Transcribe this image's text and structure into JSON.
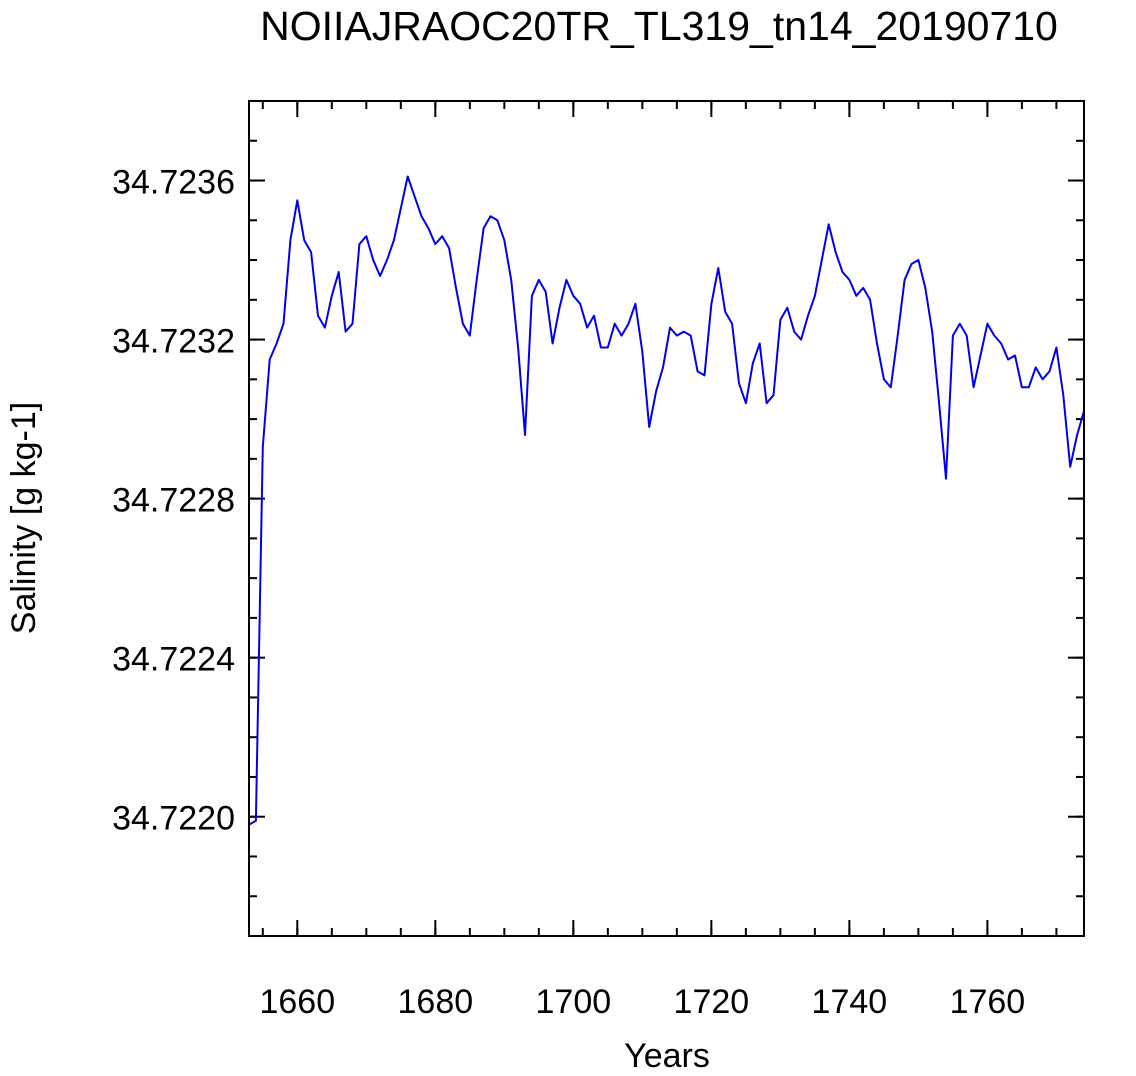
{
  "chart_data": {
    "type": "line",
    "title": "NOIIAJRAOC20TR_TL319_tn14_20190710",
    "xlabel": "Years",
    "ylabel": "Salinity [g kg-1]",
    "xlim": [
      1653,
      1774
    ],
    "ylim": [
      34.7217,
      34.7238
    ],
    "x_ticks": [
      "1660",
      "1680",
      "1700",
      "1720",
      "1740",
      "1760"
    ],
    "y_ticks": [
      "34.7220",
      "34.7224",
      "34.7228",
      "34.7232",
      "34.7236"
    ],
    "grid": false,
    "line_color": "#0000ee",
    "series": [
      {
        "x": [
          1653,
          1654,
          1655,
          1656,
          1657,
          1658,
          1659,
          1660,
          1661,
          1662,
          1663,
          1664,
          1665,
          1666,
          1667,
          1668,
          1669,
          1670,
          1671,
          1672,
          1673,
          1674,
          1675,
          1676,
          1677,
          1678,
          1679,
          1680,
          1681,
          1682,
          1683,
          1684,
          1685,
          1686,
          1687,
          1688,
          1689,
          1690,
          1691,
          1692,
          1693,
          1694,
          1695,
          1696,
          1697,
          1698,
          1699,
          1700,
          1701,
          1702,
          1703,
          1704,
          1705,
          1706,
          1707,
          1708,
          1709,
          1710,
          1711,
          1712,
          1713,
          1714,
          1715,
          1716,
          1717,
          1718,
          1719,
          1720,
          1721,
          1722,
          1723,
          1724,
          1725,
          1726,
          1727,
          1728,
          1729,
          1730,
          1731,
          1732,
          1733,
          1734,
          1735,
          1736,
          1737,
          1738,
          1739,
          1740,
          1741,
          1742,
          1743,
          1744,
          1745,
          1746,
          1747,
          1748,
          1749,
          1750,
          1751,
          1752,
          1753,
          1754,
          1755,
          1756,
          1757,
          1758,
          1759,
          1760,
          1761,
          1762,
          1763,
          1764,
          1765,
          1766,
          1767,
          1768,
          1769,
          1770,
          1771,
          1772,
          1773,
          1774
        ],
        "values": [
          34.72198,
          34.72199,
          34.72293,
          34.72315,
          34.72319,
          34.72324,
          34.72345,
          34.72355,
          34.72345,
          34.72342,
          34.72326,
          34.72323,
          34.72331,
          34.72337,
          34.72322,
          34.72324,
          34.72344,
          34.72346,
          34.7234,
          34.72336,
          34.7234,
          34.72345,
          34.72353,
          34.72361,
          34.72356,
          34.72351,
          34.72348,
          34.72344,
          34.72346,
          34.72343,
          34.72333,
          34.72324,
          34.72321,
          34.72335,
          34.72348,
          34.72351,
          34.7235,
          34.72345,
          34.72335,
          34.72318,
          34.72296,
          34.72331,
          34.72335,
          34.72332,
          34.72319,
          34.72328,
          34.72335,
          34.72331,
          34.72329,
          34.72323,
          34.72326,
          34.72318,
          34.72318,
          34.72324,
          34.72321,
          34.72324,
          34.72329,
          34.72317,
          34.72298,
          34.72307,
          34.72313,
          34.72323,
          34.72321,
          34.72322,
          34.72321,
          34.72312,
          34.72311,
          34.72329,
          34.72338,
          34.72327,
          34.72324,
          34.72309,
          34.72304,
          34.72314,
          34.72319,
          34.72304,
          34.72306,
          34.72325,
          34.72328,
          34.72322,
          34.7232,
          34.72326,
          34.72331,
          34.7234,
          34.72349,
          34.72342,
          34.72337,
          34.72335,
          34.72331,
          34.72333,
          34.7233,
          34.72319,
          34.7231,
          34.72308,
          34.72321,
          34.72335,
          34.72339,
          34.7234,
          34.72333,
          34.72322,
          34.72304,
          34.72285,
          34.72321,
          34.72324,
          34.72321,
          34.72308,
          34.72316,
          34.72324,
          34.72321,
          34.72319,
          34.72315,
          34.72316,
          34.72308,
          34.72308,
          34.72313,
          34.7231,
          34.72312,
          34.72318,
          34.72306,
          34.72288,
          34.72296,
          34.72302
        ]
      }
    ]
  }
}
